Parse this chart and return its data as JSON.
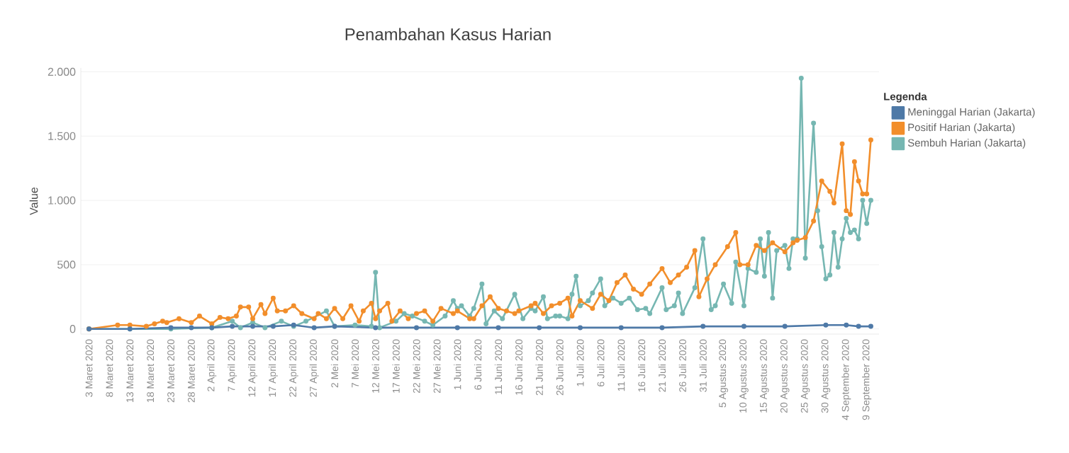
{
  "chart_data": {
    "type": "line",
    "title": "Penambahan Kasus Harian",
    "ylabel": "Value",
    "legend_title": "Legenda",
    "xlim": [
      "2020-03-01",
      "2020-09-12"
    ],
    "ylim": [
      -40,
      2030
    ],
    "yticks": [
      0,
      500,
      {
        "value": 1000,
        "label": "1.000"
      },
      {
        "value": 1500,
        "label": "1.500"
      },
      {
        "value": 2000,
        "label": "2.000"
      }
    ],
    "xticks": [
      {
        "value": "2020-03-03",
        "label": "3 Maret 2020"
      },
      {
        "value": "2020-03-08",
        "label": "8 Maret 2020"
      },
      {
        "value": "2020-03-13",
        "label": "13 Maret 2020"
      },
      {
        "value": "2020-03-18",
        "label": "18 Maret 2020"
      },
      {
        "value": "2020-03-23",
        "label": "23 Maret 2020"
      },
      {
        "value": "2020-03-28",
        "label": "28 Maret 2020"
      },
      {
        "value": "2020-04-02",
        "label": "2 April 2020"
      },
      {
        "value": "2020-04-07",
        "label": "7 April 2020"
      },
      {
        "value": "2020-04-12",
        "label": "12 April 2020"
      },
      {
        "value": "2020-04-17",
        "label": "17 April 2020"
      },
      {
        "value": "2020-04-22",
        "label": "22 April 2020"
      },
      {
        "value": "2020-04-27",
        "label": "27 April 2020"
      },
      {
        "value": "2020-05-02",
        "label": "2 Mei 2020"
      },
      {
        "value": "2020-05-07",
        "label": "7 Mei 2020"
      },
      {
        "value": "2020-05-12",
        "label": "12 Mei 2020"
      },
      {
        "value": "2020-05-17",
        "label": "17 Mei 2020"
      },
      {
        "value": "2020-05-22",
        "label": "22 Mei 2020"
      },
      {
        "value": "2020-05-27",
        "label": "27 Mei 2020"
      },
      {
        "value": "2020-06-01",
        "label": "1 Juni 2020"
      },
      {
        "value": "2020-06-06",
        "label": "6 Juni 2020"
      },
      {
        "value": "2020-06-11",
        "label": "11 Juni 2020"
      },
      {
        "value": "2020-06-16",
        "label": "16 Juni 2020"
      },
      {
        "value": "2020-06-21",
        "label": "21 Juni 2020"
      },
      {
        "value": "2020-06-26",
        "label": "26 Juni 2020"
      },
      {
        "value": "2020-07-01",
        "label": "1 Juli 2020"
      },
      {
        "value": "2020-07-06",
        "label": "6 Juli 2020"
      },
      {
        "value": "2020-07-11",
        "label": "11 Juli 2020"
      },
      {
        "value": "2020-07-16",
        "label": "16 Juli 2020"
      },
      {
        "value": "2020-07-21",
        "label": "21 Juli 2020"
      },
      {
        "value": "2020-07-26",
        "label": "26 Juli 2020"
      },
      {
        "value": "2020-07-31",
        "label": "31 Juli 2020"
      },
      {
        "value": "2020-08-05",
        "label": "5 Agustus 2020"
      },
      {
        "value": "2020-08-10",
        "label": "10 Agustus 2020"
      },
      {
        "value": "2020-08-15",
        "label": "15 Agustus 2020"
      },
      {
        "value": "2020-08-20",
        "label": "20 Agustus 2020"
      },
      {
        "value": "2020-08-25",
        "label": "25 Agustus 2020"
      },
      {
        "value": "2020-08-30",
        "label": "30 Agustus 2020"
      },
      {
        "value": "2020-09-04",
        "label": "4 September 2020"
      },
      {
        "value": "2020-09-09",
        "label": "9 September 2020"
      }
    ],
    "grid": "y",
    "legend": "top right",
    "marker": "circle",
    "line_style": "solid",
    "series": [
      {
        "name": "Meninggal Harian (Jakarta)",
        "color": "#4e79a7",
        "x": [
          "2020-03-03",
          "2020-03-13",
          "2020-03-23",
          "2020-03-28",
          "2020-04-02",
          "2020-04-07",
          "2020-04-12",
          "2020-04-17",
          "2020-04-22",
          "2020-04-27",
          "2020-05-02",
          "2020-05-12",
          "2020-05-22",
          "2020-06-01",
          "2020-06-11",
          "2020-06-21",
          "2020-07-01",
          "2020-07-11",
          "2020-07-21",
          "2020-07-31",
          "2020-08-10",
          "2020-08-20",
          "2020-08-30",
          "2020-09-04",
          "2020-09-07",
          "2020-09-10"
        ],
        "values": [
          0,
          0,
          10,
          10,
          10,
          20,
          20,
          20,
          30,
          10,
          20,
          10,
          10,
          10,
          10,
          10,
          10,
          10,
          10,
          20,
          20,
          20,
          30,
          30,
          20,
          20
        ]
      },
      {
        "name": "Positif Harian (Jakarta)",
        "color": "#f28e2b",
        "x": [
          "2020-03-03",
          "2020-03-10",
          "2020-03-13",
          "2020-03-17",
          "2020-03-19",
          "2020-03-21",
          "2020-03-22",
          "2020-03-25",
          "2020-03-28",
          "2020-03-30",
          "2020-04-02",
          "2020-04-04",
          "2020-04-06",
          "2020-04-08",
          "2020-04-09",
          "2020-04-11",
          "2020-04-12",
          "2020-04-14",
          "2020-04-15",
          "2020-04-17",
          "2020-04-18",
          "2020-04-20",
          "2020-04-22",
          "2020-04-24",
          "2020-04-27",
          "2020-04-28",
          "2020-04-30",
          "2020-05-02",
          "2020-05-04",
          "2020-05-06",
          "2020-05-08",
          "2020-05-09",
          "2020-05-11",
          "2020-05-12",
          "2020-05-13",
          "2020-05-15",
          "2020-05-16",
          "2020-05-18",
          "2020-05-20",
          "2020-05-22",
          "2020-05-24",
          "2020-05-26",
          "2020-05-28",
          "2020-05-31",
          "2020-06-01",
          "2020-06-04",
          "2020-06-05",
          "2020-06-07",
          "2020-06-09",
          "2020-06-11",
          "2020-06-13",
          "2020-06-15",
          "2020-06-16",
          "2020-06-19",
          "2020-06-20",
          "2020-06-22",
          "2020-06-24",
          "2020-06-26",
          "2020-06-28",
          "2020-06-29",
          "2020-07-01",
          "2020-07-04",
          "2020-07-06",
          "2020-07-08",
          "2020-07-10",
          "2020-07-12",
          "2020-07-14",
          "2020-07-16",
          "2020-07-18",
          "2020-07-21",
          "2020-07-23",
          "2020-07-25",
          "2020-07-27",
          "2020-07-29",
          "2020-07-30",
          "2020-08-01",
          "2020-08-03",
          "2020-08-06",
          "2020-08-08",
          "2020-08-09",
          "2020-08-11",
          "2020-08-13",
          "2020-08-15",
          "2020-08-17",
          "2020-08-20",
          "2020-08-22",
          "2020-08-23",
          "2020-08-25",
          "2020-08-27",
          "2020-08-29",
          "2020-08-31",
          "2020-09-01",
          "2020-09-03",
          "2020-09-04",
          "2020-09-05",
          "2020-09-06",
          "2020-09-07",
          "2020-09-08",
          "2020-09-09",
          "2020-09-10"
        ],
        "values": [
          0,
          30,
          30,
          20,
          40,
          60,
          50,
          80,
          50,
          100,
          40,
          90,
          80,
          100,
          170,
          170,
          80,
          190,
          120,
          240,
          140,
          140,
          180,
          120,
          80,
          120,
          80,
          160,
          80,
          180,
          60,
          140,
          200,
          80,
          140,
          200,
          60,
          140,
          80,
          120,
          140,
          60,
          160,
          120,
          140,
          80,
          80,
          180,
          250,
          160,
          140,
          120,
          140,
          180,
          200,
          120,
          180,
          200,
          240,
          100,
          220,
          160,
          270,
          220,
          360,
          420,
          310,
          270,
          350,
          470,
          360,
          420,
          480,
          610,
          250,
          390,
          500,
          640,
          750,
          500,
          500,
          650,
          610,
          670,
          600,
          670,
          690,
          710,
          840,
          1150,
          1070,
          980,
          1440,
          920,
          890,
          1300,
          1150,
          1050,
          1050,
          1470
        ]
      },
      {
        "name": "Sembuh Harian (Jakarta)",
        "color": "#76b7b2",
        "x": [
          "2020-03-03",
          "2020-03-13",
          "2020-03-23",
          "2020-04-02",
          "2020-04-07",
          "2020-04-09",
          "2020-04-12",
          "2020-04-15",
          "2020-04-19",
          "2020-04-22",
          "2020-04-25",
          "2020-04-30",
          "2020-05-02",
          "2020-05-07",
          "2020-05-11",
          "2020-05-12",
          "2020-05-13",
          "2020-05-17",
          "2020-05-19",
          "2020-05-21",
          "2020-05-24",
          "2020-05-26",
          "2020-05-29",
          "2020-05-31",
          "2020-06-01",
          "2020-06-02",
          "2020-06-04",
          "2020-06-05",
          "2020-06-07",
          "2020-06-08",
          "2020-06-10",
          "2020-06-12",
          "2020-06-15",
          "2020-06-17",
          "2020-06-19",
          "2020-06-20",
          "2020-06-22",
          "2020-06-23",
          "2020-06-25",
          "2020-06-26",
          "2020-06-28",
          "2020-06-29",
          "2020-06-30",
          "2020-07-01",
          "2020-07-03",
          "2020-07-04",
          "2020-07-06",
          "2020-07-07",
          "2020-07-09",
          "2020-07-11",
          "2020-07-13",
          "2020-07-15",
          "2020-07-17",
          "2020-07-18",
          "2020-07-21",
          "2020-07-22",
          "2020-07-24",
          "2020-07-25",
          "2020-07-26",
          "2020-07-29",
          "2020-07-31",
          "2020-08-02",
          "2020-08-03",
          "2020-08-05",
          "2020-08-07",
          "2020-08-08",
          "2020-08-10",
          "2020-08-11",
          "2020-08-13",
          "2020-08-14",
          "2020-08-15",
          "2020-08-16",
          "2020-08-17",
          "2020-08-18",
          "2020-08-20",
          "2020-08-21",
          "2020-08-22",
          "2020-08-23",
          "2020-08-24",
          "2020-08-25",
          "2020-08-27",
          "2020-08-28",
          "2020-08-29",
          "2020-08-30",
          "2020-08-31",
          "2020-09-01",
          "2020-09-02",
          "2020-09-03",
          "2020-09-04",
          "2020-09-05",
          "2020-09-06",
          "2020-09-07",
          "2020-09-08",
          "2020-09-09",
          "2020-09-10"
        ],
        "values": [
          0,
          0,
          0,
          10,
          60,
          10,
          50,
          10,
          60,
          20,
          60,
          140,
          20,
          30,
          20,
          440,
          10,
          60,
          120,
          100,
          60,
          30,
          100,
          220,
          160,
          180,
          100,
          160,
          350,
          40,
          140,
          80,
          270,
          80,
          160,
          140,
          250,
          80,
          100,
          100,
          80,
          270,
          410,
          180,
          220,
          280,
          390,
          180,
          240,
          200,
          240,
          150,
          160,
          120,
          320,
          150,
          180,
          280,
          120,
          320,
          700,
          150,
          180,
          350,
          200,
          520,
          180,
          470,
          440,
          700,
          410,
          750,
          240,
          610,
          650,
          470,
          700,
          700,
          1950,
          550,
          1600,
          920,
          640,
          390,
          420,
          750,
          480,
          700,
          860,
          750,
          770,
          700,
          1000,
          820,
          1000
        ]
      }
    ]
  }
}
